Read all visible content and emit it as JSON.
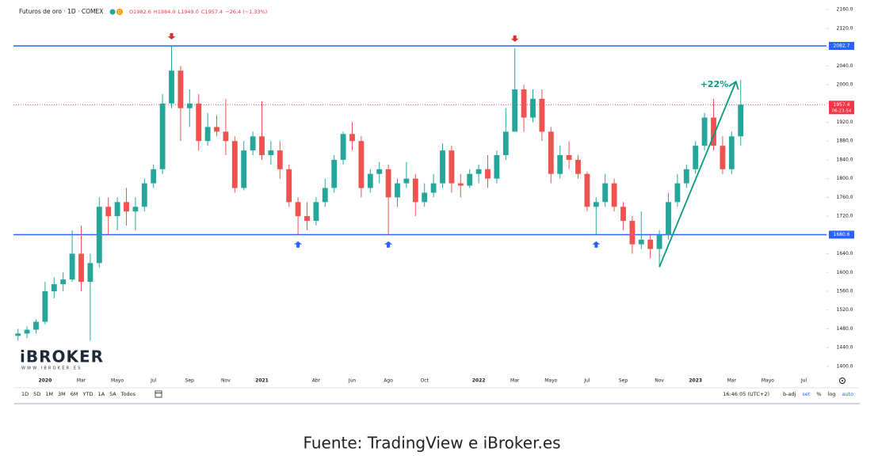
{
  "header": {
    "symbol": "Futuros de oro · 1D · COMEX",
    "flag": "D",
    "ohlc": [
      "O1982.6",
      "H1984.0",
      "L1949.0",
      "C1957.4",
      "−26.4 (−1.33%)"
    ]
  },
  "chart_data": {
    "type": "candlestick",
    "categories": [
      null,
      null,
      null,
      "2020",
      null,
      null,
      null,
      "Mar",
      null,
      null,
      null,
      "Mayo",
      null,
      null,
      null,
      "Jul",
      null,
      null,
      null,
      "Sep",
      null,
      null,
      null,
      "Nov",
      null,
      null,
      null,
      "2021",
      null,
      null,
      null,
      null,
      null,
      "Abr",
      null,
      null,
      null,
      "Jun",
      null,
      null,
      null,
      "Ago",
      null,
      null,
      null,
      "Oct",
      null,
      null,
      null,
      null,
      null,
      "2022",
      null,
      null,
      null,
      "Mar",
      null,
      null,
      null,
      "Mayo",
      null,
      null,
      null,
      "Jul",
      null,
      null,
      null,
      "Sep",
      null,
      null,
      null,
      "Nov",
      null,
      null,
      null,
      "2023",
      null,
      null,
      null,
      "Mar",
      null,
      null,
      null,
      "Mayo",
      null,
      null,
      null,
      "Jul",
      null,
      null
    ],
    "values": [
      [
        1465,
        1480,
        1455,
        1470
      ],
      [
        1470,
        1485,
        1460,
        1478
      ],
      [
        1478,
        1500,
        1470,
        1495
      ],
      [
        1495,
        1580,
        1490,
        1560
      ],
      [
        1560,
        1590,
        1545,
        1575
      ],
      [
        1575,
        1600,
        1560,
        1585
      ],
      [
        1585,
        1690,
        1580,
        1640
      ],
      [
        1640,
        1700,
        1560,
        1580
      ],
      [
        1580,
        1640,
        1455,
        1620
      ],
      [
        1620,
        1760,
        1610,
        1740
      ],
      [
        1740,
        1760,
        1680,
        1720
      ],
      [
        1720,
        1760,
        1690,
        1750
      ],
      [
        1750,
        1780,
        1700,
        1730
      ],
      [
        1730,
        1760,
        1690,
        1740
      ],
      [
        1740,
        1800,
        1730,
        1790
      ],
      [
        1790,
        1830,
        1780,
        1820
      ],
      [
        1820,
        1980,
        1810,
        1960
      ],
      [
        1960,
        2083,
        1950,
        2030
      ],
      [
        2030,
        2040,
        1880,
        1950
      ],
      [
        1950,
        1990,
        1910,
        1960
      ],
      [
        1960,
        1980,
        1860,
        1880
      ],
      [
        1880,
        1940,
        1870,
        1910
      ],
      [
        1910,
        1935,
        1890,
        1900
      ],
      [
        1900,
        1970,
        1850,
        1880
      ],
      [
        1880,
        1890,
        1770,
        1780
      ],
      [
        1780,
        1880,
        1775,
        1860
      ],
      [
        1860,
        1900,
        1850,
        1890
      ],
      [
        1890,
        1965,
        1840,
        1850
      ],
      [
        1850,
        1880,
        1830,
        1860
      ],
      [
        1860,
        1880,
        1800,
        1820
      ],
      [
        1820,
        1830,
        1740,
        1750
      ],
      [
        1750,
        1760,
        1680,
        1720
      ],
      [
        1720,
        1750,
        1690,
        1710
      ],
      [
        1710,
        1760,
        1700,
        1750
      ],
      [
        1750,
        1800,
        1740,
        1780
      ],
      [
        1780,
        1850,
        1770,
        1840
      ],
      [
        1840,
        1900,
        1830,
        1895
      ],
      [
        1895,
        1920,
        1860,
        1880
      ],
      [
        1880,
        1890,
        1760,
        1780
      ],
      [
        1780,
        1820,
        1770,
        1810
      ],
      [
        1810,
        1835,
        1790,
        1820
      ],
      [
        1820,
        1830,
        1680,
        1760
      ],
      [
        1760,
        1800,
        1740,
        1790
      ],
      [
        1790,
        1835,
        1780,
        1800
      ],
      [
        1800,
        1810,
        1720,
        1750
      ],
      [
        1750,
        1790,
        1740,
        1770
      ],
      [
        1770,
        1810,
        1760,
        1790
      ],
      [
        1790,
        1875,
        1780,
        1860
      ],
      [
        1860,
        1870,
        1770,
        1790
      ],
      [
        1790,
        1810,
        1760,
        1785
      ],
      [
        1785,
        1820,
        1780,
        1810
      ],
      [
        1810,
        1830,
        1790,
        1820
      ],
      [
        1820,
        1850,
        1780,
        1800
      ],
      [
        1800,
        1860,
        1790,
        1850
      ],
      [
        1850,
        1950,
        1840,
        1900
      ],
      [
        1900,
        2078,
        1900,
        1990
      ],
      [
        1990,
        2000,
        1900,
        1930
      ],
      [
        1930,
        1990,
        1920,
        1970
      ],
      [
        1970,
        1990,
        1880,
        1900
      ],
      [
        1900,
        1910,
        1790,
        1810
      ],
      [
        1810,
        1870,
        1800,
        1850
      ],
      [
        1850,
        1880,
        1820,
        1840
      ],
      [
        1840,
        1850,
        1800,
        1810
      ],
      [
        1810,
        1815,
        1730,
        1740
      ],
      [
        1740,
        1760,
        1680,
        1750
      ],
      [
        1750,
        1810,
        1740,
        1790
      ],
      [
        1790,
        1800,
        1730,
        1740
      ],
      [
        1740,
        1750,
        1690,
        1710
      ],
      [
        1710,
        1720,
        1640,
        1660
      ],
      [
        1660,
        1730,
        1650,
        1670
      ],
      [
        1670,
        1680,
        1630,
        1650
      ],
      [
        1650,
        1690,
        1615,
        1680
      ],
      [
        1680,
        1770,
        1670,
        1750
      ],
      [
        1750,
        1810,
        1740,
        1790
      ],
      [
        1790,
        1830,
        1780,
        1820
      ],
      [
        1820,
        1880,
        1810,
        1870
      ],
      [
        1870,
        1940,
        1860,
        1930
      ],
      [
        1930,
        1970,
        1860,
        1870
      ],
      [
        1870,
        1890,
        1810,
        1820
      ],
      [
        1820,
        1900,
        1810,
        1890
      ],
      [
        1890,
        2010,
        1870,
        1957.4
      ],
      null,
      null,
      null,
      null,
      null,
      null,
      null,
      null,
      null
    ],
    "up_color": "#26a69a",
    "down_color": "#ef5350",
    "ylim": [
      1388,
      2167
    ],
    "yticks": [
      {
        "value": 1400,
        "label": "1400.0"
      },
      {
        "value": 1440,
        "label": "1440.0"
      },
      {
        "value": 1480,
        "label": "1480.0"
      },
      {
        "value": 1520,
        "label": "1520.0"
      },
      {
        "value": 1560,
        "label": "1560.0"
      },
      {
        "value": 1600,
        "label": "1600.0"
      },
      {
        "value": 1640,
        "label": "1640.0"
      },
      {
        "value": 1680,
        "label": "1680.0"
      },
      {
        "value": 1720,
        "label": "1720.0"
      },
      {
        "value": 1760,
        "label": "1760.0"
      },
      {
        "value": 1800,
        "label": "1800.0"
      },
      {
        "value": 1840,
        "label": "1840.0"
      },
      {
        "value": 1880,
        "label": "1880.0"
      },
      {
        "value": 1920,
        "label": "1920.0"
      },
      {
        "value": 1960,
        "label": "1960.0"
      },
      {
        "value": 2000,
        "label": "2000.0"
      },
      {
        "value": 2040,
        "label": "2040.0"
      },
      {
        "value": 2080,
        "label": "2080.0"
      },
      {
        "value": 2120,
        "label": "2120.0"
      },
      {
        "value": 2160,
        "label": "2160.0"
      }
    ],
    "grid": false,
    "levels": [
      {
        "value": 2082.7,
        "color": "#2962ff"
      },
      {
        "value": 1680.6,
        "color": "#2962ff"
      }
    ],
    "last_price": {
      "value": 1957.4,
      "countdown": "06:23:54",
      "color": "#f23645"
    },
    "trend": {
      "label": "+22%",
      "color": "#089981"
    }
  },
  "watermark": {
    "brand": "iBROKER",
    "url": "WWW.IBROKER.ES"
  },
  "toolbar": {
    "ranges": [
      "1D",
      "5D",
      "1M",
      "3M",
      "6M",
      "YTD",
      "1A",
      "5A",
      "Todos"
    ],
    "time": "16:46:05 (UTC+2)",
    "options": [
      "b-adj",
      "set",
      "%",
      "log",
      "auto"
    ]
  },
  "caption": "Fuente: TradingView e iBroker.es"
}
